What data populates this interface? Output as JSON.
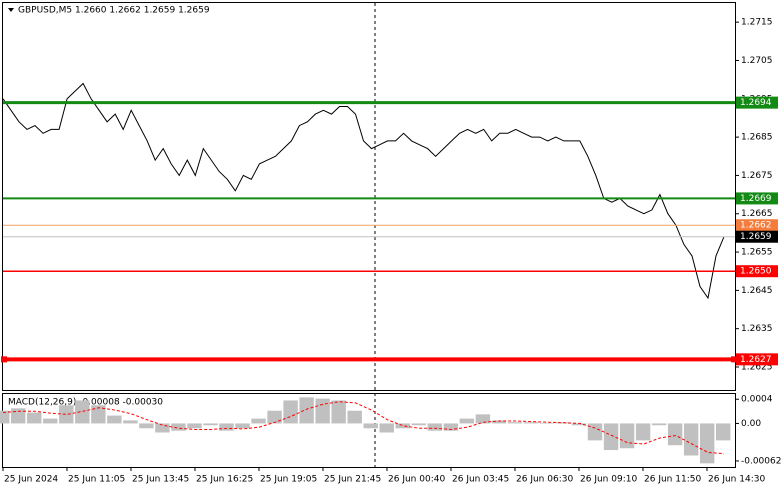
{
  "chart_data": [
    {
      "type": "line",
      "title": "GBPUSD,M5  1.2660 1.2662 1.2659 1.2659",
      "color": "#000000",
      "ylim": [
        1.2619,
        1.272
      ],
      "yticks": [
        1.2715,
        1.2705,
        1.2695,
        1.2685,
        1.2675,
        1.2665,
        1.2655,
        1.2645,
        1.2635,
        1.2625
      ],
      "x_labels": [
        "25 Jun 2024",
        "25 Jun 11:05",
        "25 Jun 13:45",
        "25 Jun 16:25",
        "25 Jun 19:05",
        "25 Jun 21:45",
        "26 Jun 00:40",
        "26 Jun 03:45",
        "26 Jun 06:30",
        "26 Jun 09:10",
        "26 Jun 11:50",
        "26 Jun 14:30"
      ],
      "values": [
        1.2695,
        1.2692,
        1.2689,
        1.2687,
        1.2688,
        1.2686,
        1.2687,
        1.2687,
        1.2695,
        1.2697,
        1.2699,
        1.2695,
        1.2692,
        1.2689,
        1.2691,
        1.2687,
        1.2692,
        1.2688,
        1.2684,
        1.2679,
        1.2682,
        1.2678,
        1.2675,
        1.2679,
        1.2675,
        1.2682,
        1.2679,
        1.2676,
        1.2674,
        1.2671,
        1.2675,
        1.2674,
        1.2678,
        1.2679,
        1.268,
        1.2682,
        1.2684,
        1.2688,
        1.2689,
        1.2691,
        1.2692,
        1.2691,
        1.2693,
        1.2693,
        1.2691,
        1.2684,
        1.2682,
        1.2683,
        1.2684,
        1.2684,
        1.2686,
        1.2684,
        1.2683,
        1.2682,
        1.268,
        1.2682,
        1.2684,
        1.2686,
        1.2687,
        1.2686,
        1.2687,
        1.2684,
        1.2686,
        1.2686,
        1.2687,
        1.2686,
        1.2685,
        1.2685,
        1.2684,
        1.2685,
        1.2684,
        1.2684,
        1.2684,
        1.268,
        1.2675,
        1.2669,
        1.2668,
        1.2669,
        1.2667,
        1.2666,
        1.2665,
        1.2666,
        1.267,
        1.2665,
        1.2662,
        1.2657,
        1.2654,
        1.2646,
        1.2643,
        1.2654,
        1.2659
      ],
      "levels": [
        {
          "value": 1.2694,
          "label": "1.2694",
          "color": "#138a13",
          "label_color": "#138a13",
          "line_width": 3
        },
        {
          "value": 1.2669,
          "label": "1.2669",
          "color": "#138a13",
          "label_color": "#138a13",
          "line_width": 2
        },
        {
          "value": 1.2662,
          "label": "1.2662",
          "color": "#f4a460",
          "label_color": "#f47c3c",
          "line_width": 1
        },
        {
          "value": 1.2659,
          "label": "1.2659",
          "color": "#c0c0c0",
          "label_color": "#000000",
          "line_width": 1
        },
        {
          "value": 1.265,
          "label": "1.2650",
          "color": "#ff0000",
          "label_color": "#ff0000",
          "line_width": 1.5
        },
        {
          "value": 1.2627,
          "label": "1.2627",
          "color": "#ff0000",
          "label_color": "#ff0000",
          "line_width": 4
        }
      ]
    },
    {
      "type": "macd",
      "title": "MACD(12,26,9) -0.00008 -0.00030",
      "ylim": [
        -0.00072,
        0.00047
      ],
      "yticks": [
        0.0004,
        {
          "value": 0,
          "label": "0.00"
        },
        -0.00062
      ],
      "histogram": {
        "color": "#c0c0c0",
        "values": [
          0.00021,
          0.00025,
          0.00018,
          8e-05,
          0.0003,
          0.00038,
          0.0003,
          0.00013,
          5e-05,
          -8e-05,
          -0.00015,
          -0.00012,
          -8e-05,
          -3e-05,
          -0.00012,
          -8e-05,
          8e-05,
          0.00021,
          0.00038,
          0.00043,
          0.00041,
          0.00038,
          0.00021,
          -8e-05,
          -0.00015,
          -8e-05,
          -3e-05,
          -0.00012,
          -0.00012,
          8e-05,
          0.00015,
          5e-05,
          2e-05,
          2e-05,
          0,
          2e-05,
          -3e-05,
          -0.00028,
          -0.00044,
          -0.00041,
          -0.00028,
          -3e-05,
          -0.00036,
          -0.00053,
          -0.00066,
          -0.00028
        ]
      },
      "signal": {
        "color": "#ff0000",
        "values": [
          0.00018,
          0.0002,
          0.0002,
          0.00017,
          0.00015,
          0.0002,
          0.00026,
          0.00022,
          0.00016,
          6e-05,
          -3e-05,
          -8e-05,
          -0.0001,
          -0.0001,
          -8e-05,
          -9e-05,
          -6e-05,
          2e-05,
          0.00012,
          0.00024,
          0.00032,
          0.00036,
          0.00034,
          0.00022,
          6e-05,
          -4e-05,
          -8e-05,
          -8e-05,
          -0.0001,
          -6e-05,
          2e-05,
          4e-05,
          4e-05,
          3e-05,
          2e-05,
          1e-05,
          0,
          -8e-05,
          -0.0002,
          -0.00032,
          -0.00034,
          -0.00024,
          -0.0002,
          -0.00034,
          -0.00048,
          -0.0005
        ]
      }
    }
  ]
}
